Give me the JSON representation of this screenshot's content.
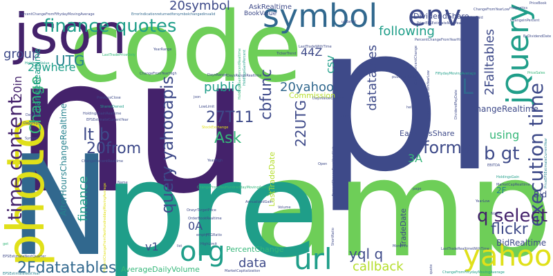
{
  "palette": {
    "dark_purple": "#44226b",
    "purple": "#482878",
    "indigo": "#3e4a89",
    "blue": "#31688e",
    "teal": "#26828e",
    "green_teal": "#1f9e89",
    "green": "#35b779",
    "light_green": "#6ece58",
    "yellow_green": "#b5de2b",
    "yellow": "#e0e01a"
  },
  "words": [
    {
      "text": "nu"
    },
    {
      "text": "pl"
    },
    {
      "text": "amp"
    },
    {
      "text": "pre"
    },
    {
      "text": "code"
    },
    {
      "text": "N"
    },
    {
      "text": "json"
    },
    {
      "text": "photo"
    },
    {
      "text": "env"
    },
    {
      "text": "symbol"
    },
    {
      "text": "jQuery"
    },
    {
      "text": "yahoo"
    },
    {
      "text": "org"
    },
    {
      "text": "url"
    },
    {
      "text": "finance quotes"
    },
    {
      "text": "execution time"
    },
    {
      "text": "time content"
    },
    {
      "text": "query yahooapis"
    },
    {
      "text": "q select"
    },
    {
      "text": "lt b"
    },
    {
      "text": "b gt"
    },
    {
      "text": "format"
    },
    {
      "text": "flickr"
    },
    {
      "text": "2Fdatatables"
    },
    {
      "text": "data"
    },
    {
      "text": "yql q"
    },
    {
      "text": "callback"
    },
    {
      "text": "27T11"
    },
    {
      "text": "cbfunc"
    },
    {
      "text": "Ask"
    },
    {
      "text": "following"
    },
    {
      "text": "20symbol"
    },
    {
      "text": "20from"
    },
    {
      "text": "UTG"
    },
    {
      "text": "group"
    },
    {
      "text": "Change"
    },
    {
      "text": "datatables"
    },
    {
      "text": "22UTG"
    },
    {
      "text": "20yahoo"
    },
    {
      "text": "public"
    },
    {
      "text": "finance"
    },
    {
      "text": "2Falltables"
    },
    {
      "text": "csv"
    },
    {
      "text": "44Z"
    },
    {
      "text": "v1"
    },
    {
      "text": "0A"
    },
    {
      "text": "3A"
    },
    {
      "text": "using"
    },
    {
      "text": "ChangeRealtime"
    },
    {
      "text": "BidRealtime"
    },
    {
      "text": "20where"
    },
    {
      "text": "20in"
    },
    {
      "text": "ChangeRealtime"
    },
    {
      "text": "AfterHoursChangeRealtime"
    },
    {
      "text": "2F"
    },
    {
      "text": "Bid"
    },
    {
      "text": "L"
    },
    {
      "text": "AverageDailyVolume"
    },
    {
      "text": "PercentChange"
    },
    {
      "text": "Commission"
    },
    {
      "text": "EarningsShare"
    },
    {
      "text": "LastTradeDate"
    },
    {
      "text": "TradeDate"
    },
    {
      "text": "DividendShare"
    },
    {
      "text": "AskRealtime"
    },
    {
      "text": "BookValue"
    },
    {
      "text": "DaysRange"
    },
    {
      "text": "DaysRangeRealtime"
    },
    {
      "text": "LastTradeWithTime"
    },
    {
      "text": "TickerTrend"
    },
    {
      "text": "YearRange"
    },
    {
      "text": "PreviousClose"
    },
    {
      "text": "SharesOwned"
    },
    {
      "text": "HoldingsGainRealtime"
    },
    {
      "text": "EPSEstimateCurrentYear"
    },
    {
      "text": "ChangePercentRealtime"
    },
    {
      "text": "HoldingsValue"
    },
    {
      "text": "ChangeFromYearHigh"
    },
    {
      "text": "LastTradePriceOnly"
    },
    {
      "text": "PercentChangeFromFiftydayMovingAverage"
    },
    {
      "text": "ErrorIndicationreturnedforsymbolchangedinvalid"
    },
    {
      "text": "PriceEPSEstimateNextYear"
    },
    {
      "text": "PercentChangeFromYearHigh"
    },
    {
      "text": "FiftydayMovingAverage"
    },
    {
      "text": "ExDividendDate"
    },
    {
      "text": "PriceSales"
    },
    {
      "text": "EBITDA"
    },
    {
      "text": "PriceEPSEstimateCurrentYear"
    },
    {
      "text": "MarketCapRealtime"
    },
    {
      "text": "HoldingsGain"
    },
    {
      "text": "AnnualizedGain"
    },
    {
      "text": "OrderBookRealtime"
    },
    {
      "text": "OneyrTargetPrice"
    },
    {
      "text": "PEGRatio"
    },
    {
      "text": "ChangeFromTwoHundreddayMovingAverage"
    },
    {
      "text": "ChangeFromFiftydayMovingAverage"
    },
    {
      "text": "MarketCapitalization"
    },
    {
      "text": "PercentChangeFromTwoHundreddayMovingAverage"
    },
    {
      "text": "EPSEstimateNextQuarter"
    },
    {
      "text": "HighLimit"
    },
    {
      "text": "LowLimit"
    },
    {
      "text": "Volume"
    },
    {
      "text": "Name"
    },
    {
      "text": "PERatio"
    },
    {
      "text": "YearLow"
    },
    {
      "text": "YearHigh"
    },
    {
      "text": "Open"
    },
    {
      "text": "HoldingsGainPercentRealtime"
    },
    {
      "text": "DividendPayDate"
    },
    {
      "text": "ShortRatio"
    },
    {
      "text": "MoreInfo"
    },
    {
      "text": "Notes"
    },
    {
      "text": "DaysLow"
    },
    {
      "text": "DaysHigh"
    },
    {
      "text": "Symbol"
    },
    {
      "text": "StockExchange"
    },
    {
      "text": "ChangeinPercent"
    },
    {
      "text": "PercentChangeFromYearLow"
    },
    {
      "text": "PercentChangeFromYearHigh"
    },
    {
      "text": "publicyqltable"
    },
    {
      "text": "service"
    },
    {
      "text": "empty"
    },
    {
      "text": "page"
    },
    {
      "text": "calling"
    },
    {
      "text": "help"
    },
    {
      "text": "quote"
    },
    {
      "text": "list"
    },
    {
      "text": "updated"
    },
    {
      "text": "PriceBook"
    },
    {
      "text": "magnetics"
    },
    {
      "text": "PricePaid"
    },
    {
      "text": "get"
    },
    {
      "text": "json"
    },
    {
      "text": "DaysValueChange"
    },
    {
      "text": "EPSEstimateNextYear"
    },
    {
      "text": "LastTradeRealtimeWithTime"
    },
    {
      "text": "HoldingsGainPercent"
    },
    {
      "text": "ChangePercentChange"
    },
    {
      "text": "ChangeFromYearLow"
    }
  ]
}
